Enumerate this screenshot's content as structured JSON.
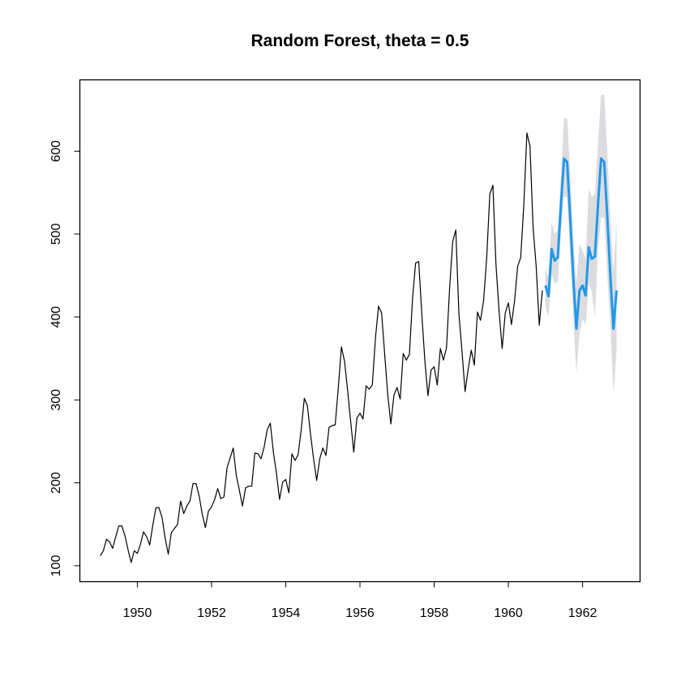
{
  "chart_data": {
    "type": "line",
    "title": "Random Forest, theta = 0.5",
    "xlabel": "",
    "ylabel": "",
    "xlim": [
      1948.45,
      1963.55
    ],
    "ylim": [
      80.8,
      686.0
    ],
    "x_ticks": [
      1950,
      1952,
      1954,
      1956,
      1958,
      1960,
      1962
    ],
    "x_tick_labels": [
      "1950",
      "1952",
      "1954",
      "1956",
      "1958",
      "1960",
      "1962"
    ],
    "y_ticks": [
      100,
      200,
      300,
      400,
      500,
      600
    ],
    "y_tick_labels": [
      "100",
      "200",
      "300",
      "400",
      "500",
      "600"
    ],
    "grid": false,
    "legend": "none",
    "history": {
      "start": 1949,
      "frequency": 12,
      "color": "#000000",
      "values": [
        112,
        118,
        132,
        129,
        121,
        135,
        148,
        148,
        136,
        119,
        104,
        118,
        115,
        126,
        141,
        135,
        125,
        149,
        170,
        170,
        158,
        133,
        114,
        140,
        145,
        150,
        178,
        163,
        172,
        178,
        199,
        199,
        184,
        162,
        146,
        166,
        171,
        180,
        193,
        181,
        183,
        218,
        230,
        242,
        209,
        191,
        172,
        194,
        196,
        196,
        236,
        235,
        229,
        243,
        264,
        272,
        237,
        211,
        180,
        201,
        204,
        188,
        235,
        227,
        234,
        264,
        302,
        293,
        259,
        229,
        203,
        229,
        242,
        233,
        267,
        269,
        270,
        315,
        364,
        347,
        312,
        274,
        237,
        278,
        284,
        277,
        317,
        313,
        318,
        374,
        413,
        405,
        355,
        306,
        271,
        306,
        315,
        301,
        356,
        348,
        355,
        422,
        465,
        467,
        404,
        347,
        305,
        336,
        340,
        318,
        362,
        348,
        363,
        435,
        491,
        505,
        404,
        359,
        310,
        337,
        360,
        342,
        406,
        396,
        420,
        472,
        548,
        559,
        463,
        407,
        362,
        405,
        417,
        391,
        419,
        461,
        472,
        535,
        622,
        606,
        508,
        461,
        390,
        432
      ]
    },
    "forecast": {
      "start": 1961,
      "frequency": 12,
      "color": "#2297e6",
      "interval_color": "#dcdce0",
      "values": [
        438,
        425,
        482,
        468,
        472,
        535,
        591,
        587,
        520,
        448,
        386,
        432,
        438,
        426,
        484,
        470,
        473,
        536,
        591,
        587,
        521,
        449,
        386,
        432
      ],
      "lower": [
        412,
        400,
        452,
        440,
        442,
        505,
        545,
        545,
        475,
        400,
        332,
        380,
        398,
        390,
        440,
        430,
        400,
        480,
        520,
        520,
        450,
        390,
        306,
        360
      ],
      "upper": [
        458,
        448,
        515,
        500,
        505,
        568,
        640,
        640,
        575,
        500,
        440,
        488,
        480,
        470,
        555,
        545,
        548,
        610,
        668,
        668,
        600,
        520,
        455,
        515
      ]
    }
  }
}
